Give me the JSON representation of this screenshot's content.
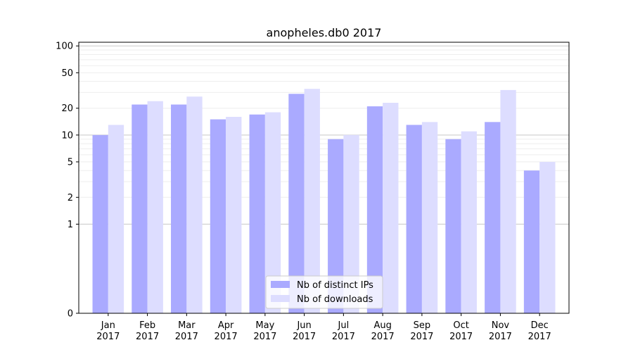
{
  "chart_data": {
    "type": "bar",
    "title": "anopheles.db0 2017",
    "xlabel": "",
    "ylabel": "",
    "y_scale": "symlog",
    "categories": [
      "Jan\n2017",
      "Feb\n2017",
      "Mar\n2017",
      "Apr\n2017",
      "May\n2017",
      "Jun\n2017",
      "Jul\n2017",
      "Aug\n2017",
      "Sep\n2017",
      "Oct\n2017",
      "Nov\n2017",
      "Dec\n2017"
    ],
    "y_ticks": [
      0,
      1,
      2,
      5,
      10,
      20,
      50,
      100
    ],
    "ylim": [
      0,
      110
    ],
    "grid": true,
    "legend_position": "lower center",
    "series": [
      {
        "name": "Nb of distinct IPs",
        "color": "#aaaaff",
        "values": [
          10,
          22,
          22,
          15,
          17,
          29,
          9,
          21,
          13,
          9,
          14,
          4
        ]
      },
      {
        "name": "Nb of downloads",
        "color": "#ddddff",
        "values": [
          13,
          24,
          27,
          16,
          18,
          33,
          10,
          23,
          14,
          11,
          32,
          5
        ]
      }
    ]
  }
}
